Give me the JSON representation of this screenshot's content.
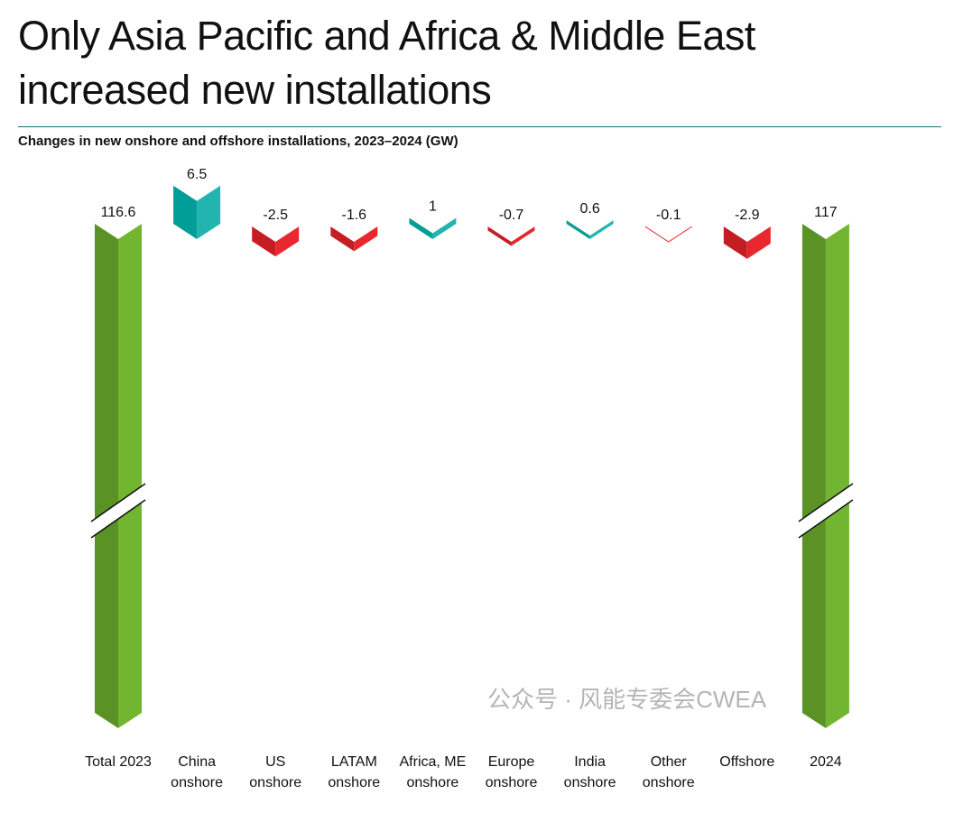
{
  "title_line1": "Only Asia Pacific and Africa & Middle East",
  "title_line2": "increased new installations",
  "subtitle": "Changes in new onshore and offshore installations, 2023–2024 (GW)",
  "watermark": "公众号 · 风能专委会CWEA",
  "colors": {
    "total_dark": "#5a9226",
    "total_light": "#72b531",
    "increase_dark": "#009e96",
    "increase_light": "#22b5b0",
    "decrease_dark": "#c41e24",
    "decrease_light": "#e8282e",
    "rule": "#1a6f7a"
  },
  "chart_data": {
    "type": "bar",
    "subtype": "waterfall",
    "title": "Changes in new onshore and offshore installations, 2023–2024 (GW)",
    "categories": [
      [
        "Total 2023"
      ],
      [
        "China",
        "onshore"
      ],
      [
        "US",
        "onshore"
      ],
      [
        "LATAM",
        "onshore"
      ],
      [
        "Africa, ME",
        "onshore"
      ],
      [
        "Europe",
        "onshore"
      ],
      [
        "India",
        "onshore"
      ],
      [
        "Other",
        "onshore"
      ],
      [
        "Offshore"
      ],
      [
        "2024"
      ]
    ],
    "values": [
      116.6,
      6.5,
      -2.5,
      -1.6,
      1,
      -0.7,
      0.6,
      -0.1,
      -2.9,
      117
    ],
    "value_labels": [
      "116.6",
      "6.5",
      "-2.5",
      "-1.6",
      "1",
      "-0.7",
      "0.6",
      "-0.1",
      "-2.9",
      "117"
    ],
    "kinds": [
      "total",
      "change",
      "change",
      "change",
      "change",
      "change",
      "change",
      "change",
      "change",
      "total"
    ],
    "axis_break": true,
    "xlabel": "",
    "ylabel": ""
  }
}
